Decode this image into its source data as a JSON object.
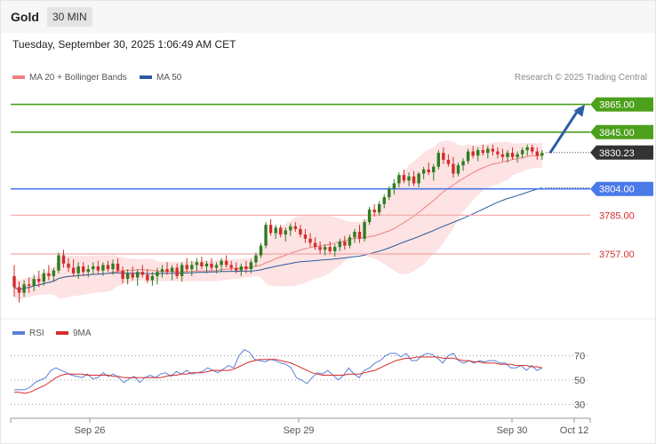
{
  "header": {
    "symbol": "Gold",
    "timeframe": "30 MIN"
  },
  "datetime": "Tuesday, September 30, 2025 1:06:49 AM CET",
  "legend_top": {
    "ma20": "MA 20 + Bollinger Bands",
    "ma50": "MA 50"
  },
  "legend_bottom": {
    "rsi": "RSI",
    "ma9": "9MA"
  },
  "copyright": "Research © 2025 Trading Central",
  "colors": {
    "up": "#2e7d1f",
    "down": "#d62b2b",
    "ma20": "#f08080",
    "ma50": "#2c5a9e",
    "bollinger": "#fde3e3",
    "resistance": "#4ca01c",
    "support": "#4a79e8",
    "pivot": "#f3a6a6",
    "arrow": "#2c5ea8",
    "rsi": "#5b7fd6",
    "rsi_ma": "#d62b2b",
    "last": "#333333"
  },
  "chart_data": {
    "type": "candlestick",
    "x_tick_labels": [
      "Sep 26",
      "Sep 29",
      "Sep 30",
      "Oct 12"
    ],
    "y_range": [
      3714,
      3875
    ],
    "levels": [
      {
        "label": "3865.00",
        "value": 3865.0,
        "style": "resistance"
      },
      {
        "label": "3845.00",
        "value": 3845.0,
        "style": "resistance"
      },
      {
        "label": "3830.23",
        "value": 3830.23,
        "style": "last"
      },
      {
        "label": "3804.00",
        "value": 3804.0,
        "style": "support"
      },
      {
        "label": "3785.00",
        "value": 3785.0,
        "style": "pivot"
      },
      {
        "label": "3757.00",
        "value": 3757.0,
        "style": "pivot"
      }
    ],
    "arrow": {
      "from": 3830,
      "to": 3865
    },
    "candles": [
      [
        3741,
        3749,
        3726,
        3733
      ],
      [
        3733,
        3737,
        3722,
        3729
      ],
      [
        3729,
        3738,
        3726,
        3735
      ],
      [
        3735,
        3740,
        3729,
        3734
      ],
      [
        3734,
        3742,
        3730,
        3739
      ],
      [
        3739,
        3745,
        3733,
        3737
      ],
      [
        3737,
        3746,
        3734,
        3743
      ],
      [
        3743,
        3749,
        3738,
        3741
      ],
      [
        3741,
        3747,
        3737,
        3745
      ],
      [
        3745,
        3758,
        3743,
        3756
      ],
      [
        3756,
        3760,
        3747,
        3750
      ],
      [
        3750,
        3754,
        3744,
        3747
      ],
      [
        3747,
        3753,
        3741,
        3743
      ],
      [
        3743,
        3751,
        3739,
        3748
      ],
      [
        3748,
        3751,
        3741,
        3744
      ],
      [
        3744,
        3749,
        3740,
        3746
      ],
      [
        3746,
        3751,
        3742,
        3748
      ],
      [
        3748,
        3752,
        3743,
        3745
      ],
      [
        3745,
        3751,
        3741,
        3749
      ],
      [
        3749,
        3752,
        3744,
        3746
      ],
      [
        3746,
        3753,
        3742,
        3750
      ],
      [
        3750,
        3754,
        3743,
        3745
      ],
      [
        3745,
        3748,
        3736,
        3739
      ],
      [
        3739,
        3746,
        3735,
        3743
      ],
      [
        3743,
        3748,
        3738,
        3740
      ],
      [
        3740,
        3746,
        3734,
        3744
      ],
      [
        3744,
        3749,
        3740,
        3742
      ],
      [
        3742,
        3746,
        3736,
        3738
      ],
      [
        3738,
        3744,
        3734,
        3741
      ],
      [
        3741,
        3747,
        3735,
        3744
      ],
      [
        3744,
        3749,
        3740,
        3746
      ],
      [
        3746,
        3751,
        3742,
        3744
      ],
      [
        3744,
        3749,
        3738,
        3747
      ],
      [
        3747,
        3750,
        3739,
        3741
      ],
      [
        3741,
        3751,
        3737,
        3749
      ],
      [
        3749,
        3754,
        3744,
        3746
      ],
      [
        3746,
        3752,
        3741,
        3749
      ],
      [
        3749,
        3754,
        3745,
        3751
      ],
      [
        3751,
        3755,
        3746,
        3748
      ],
      [
        3748,
        3752,
        3743,
        3750
      ],
      [
        3750,
        3754,
        3745,
        3747
      ],
      [
        3747,
        3751,
        3743,
        3749
      ],
      [
        3749,
        3754,
        3744,
        3752
      ],
      [
        3752,
        3756,
        3747,
        3749
      ],
      [
        3749,
        3752,
        3745,
        3747
      ],
      [
        3747,
        3751,
        3743,
        3745
      ],
      [
        3745,
        3750,
        3741,
        3748
      ],
      [
        3748,
        3752,
        3743,
        3746
      ],
      [
        3746,
        3753,
        3743,
        3751
      ],
      [
        3751,
        3758,
        3748,
        3756
      ],
      [
        3756,
        3765,
        3754,
        3763
      ],
      [
        3763,
        3780,
        3761,
        3778
      ],
      [
        3778,
        3782,
        3770,
        3772
      ],
      [
        3772,
        3778,
        3768,
        3776
      ],
      [
        3776,
        3778,
        3769,
        3771
      ],
      [
        3771,
        3776,
        3766,
        3774
      ],
      [
        3774,
        3779,
        3770,
        3777
      ],
      [
        3777,
        3780,
        3773,
        3775
      ],
      [
        3775,
        3778,
        3769,
        3771
      ],
      [
        3771,
        3775,
        3765,
        3768
      ],
      [
        3768,
        3772,
        3762,
        3765
      ],
      [
        3765,
        3769,
        3760,
        3762
      ],
      [
        3762,
        3766,
        3757,
        3760
      ],
      [
        3760,
        3764,
        3756,
        3762
      ],
      [
        3762,
        3766,
        3757,
        3759
      ],
      [
        3759,
        3764,
        3755,
        3762
      ],
      [
        3762,
        3768,
        3759,
        3766
      ],
      [
        3766,
        3770,
        3760,
        3763
      ],
      [
        3763,
        3771,
        3761,
        3769
      ],
      [
        3769,
        3775,
        3765,
        3773
      ],
      [
        3773,
        3778,
        3765,
        3768
      ],
      [
        3768,
        3782,
        3766,
        3780
      ],
      [
        3780,
        3791,
        3778,
        3789
      ],
      [
        3789,
        3793,
        3784,
        3787
      ],
      [
        3787,
        3795,
        3785,
        3793
      ],
      [
        3793,
        3800,
        3790,
        3798
      ],
      [
        3798,
        3806,
        3796,
        3804
      ],
      [
        3804,
        3811,
        3800,
        3808
      ],
      [
        3808,
        3816,
        3805,
        3814
      ],
      [
        3814,
        3818,
        3808,
        3810
      ],
      [
        3810,
        3816,
        3806,
        3813
      ],
      [
        3813,
        3817,
        3806,
        3808
      ],
      [
        3808,
        3816,
        3805,
        3815
      ],
      [
        3815,
        3820,
        3811,
        3818
      ],
      [
        3818,
        3823,
        3814,
        3816
      ],
      [
        3816,
        3822,
        3810,
        3820
      ],
      [
        3820,
        3832,
        3818,
        3830
      ],
      [
        3830,
        3834,
        3822,
        3825
      ],
      [
        3825,
        3829,
        3820,
        3822
      ],
      [
        3822,
        3827,
        3812,
        3815
      ],
      [
        3815,
        3823,
        3813,
        3821
      ],
      [
        3821,
        3826,
        3817,
        3824
      ],
      [
        3824,
        3833,
        3822,
        3831
      ],
      [
        3831,
        3835,
        3826,
        3828
      ],
      [
        3828,
        3834,
        3824,
        3832
      ],
      [
        3832,
        3836,
        3828,
        3830
      ],
      [
        3830,
        3835,
        3826,
        3833
      ],
      [
        3833,
        3836,
        3828,
        3831
      ],
      [
        3831,
        3834,
        3826,
        3829
      ],
      [
        3829,
        3833,
        3824,
        3827
      ],
      [
        3827,
        3832,
        3823,
        3830
      ],
      [
        3830,
        3834,
        3825,
        3827
      ],
      [
        3827,
        3831,
        3823,
        3829
      ],
      [
        3829,
        3834,
        3826,
        3832
      ],
      [
        3832,
        3836,
        3828,
        3834
      ],
      [
        3834,
        3836,
        3829,
        3831
      ],
      [
        3831,
        3834,
        3825,
        3828
      ],
      [
        3828,
        3832,
        3825,
        3830
      ]
    ],
    "rsi": {
      "ticks": [
        30,
        50,
        70
      ],
      "dotted": [
        30,
        50,
        70
      ],
      "range": [
        20,
        80
      ],
      "values": [
        42,
        42,
        42,
        44,
        48,
        50,
        52,
        58,
        60,
        58,
        56,
        54,
        53,
        52,
        55,
        51,
        52,
        56,
        53,
        55,
        52,
        48,
        51,
        53,
        48,
        52,
        54,
        52,
        55,
        56,
        53,
        57,
        55,
        58,
        55,
        56,
        57,
        60,
        58,
        56,
        59,
        62,
        60,
        70,
        75,
        73,
        67,
        66,
        65,
        67,
        66,
        64,
        63,
        60,
        52,
        50,
        47,
        52,
        56,
        55,
        58,
        54,
        50,
        54,
        60,
        55,
        52,
        58,
        60,
        64,
        66,
        70,
        72,
        72,
        69,
        72,
        66,
        66,
        70,
        72,
        71,
        68,
        64,
        70,
        72,
        66,
        64,
        66,
        64,
        66,
        65,
        66,
        66,
        64,
        64,
        60,
        60,
        62,
        58,
        62,
        58,
        60
      ],
      "ma9": [
        40,
        40,
        39,
        40,
        42,
        44,
        46,
        49,
        52,
        54,
        55,
        55,
        55,
        55,
        54,
        54,
        54,
        54,
        54,
        53,
        53,
        52,
        52,
        52,
        52,
        52,
        52,
        52,
        52,
        53,
        54,
        54,
        55,
        55,
        56,
        56,
        56,
        57,
        58,
        58,
        58,
        58,
        59,
        61,
        63,
        65,
        66,
        67,
        67,
        67,
        67,
        66,
        65,
        64,
        62,
        60,
        58,
        56,
        55,
        54,
        54,
        54,
        54,
        54,
        55,
        55,
        55,
        56,
        57,
        58,
        60,
        62,
        64,
        66,
        67,
        68,
        68,
        69,
        69,
        69,
        69,
        69,
        68,
        68,
        68,
        67,
        66,
        66,
        65,
        65,
        64,
        64,
        64,
        63,
        63,
        63,
        62,
        62,
        62,
        61,
        61,
        60
      ]
    }
  }
}
